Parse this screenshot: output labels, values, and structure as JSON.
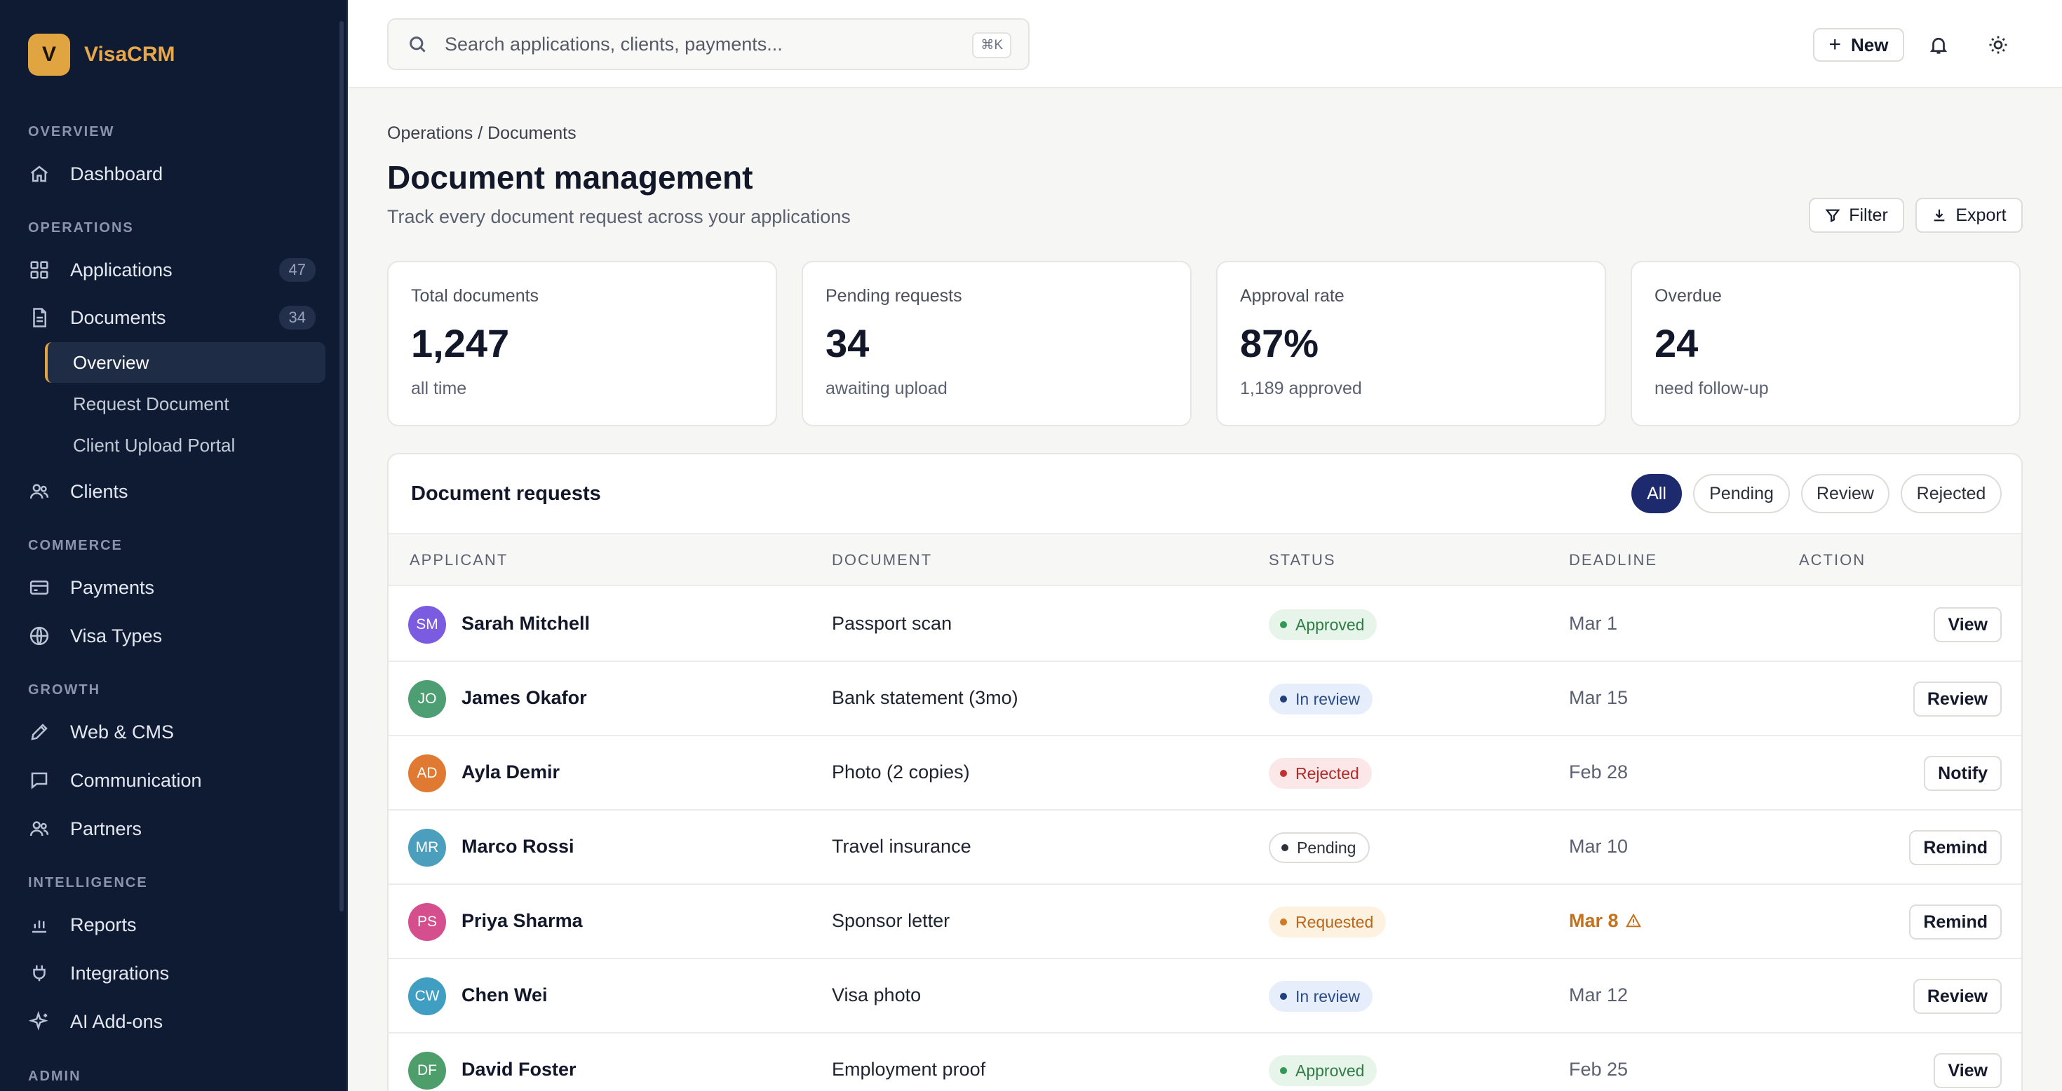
{
  "brand": {
    "logo_letter": "V",
    "name": "VisaCRM"
  },
  "sidebar": {
    "sections": [
      {
        "label": "OVERVIEW"
      },
      {
        "label": "OPERATIONS"
      },
      {
        "label": "COMMERCE"
      },
      {
        "label": "GROWTH"
      },
      {
        "label": "INTELLIGENCE"
      },
      {
        "label": "ADMIN"
      }
    ],
    "items": [
      {
        "label": "Dashboard",
        "icon": "home-icon"
      },
      {
        "label": "Applications",
        "icon": "grid-icon",
        "count": "47"
      },
      {
        "label": "Documents",
        "icon": "document-icon",
        "count": "34"
      },
      {
        "label": "Clients",
        "icon": "users-icon"
      },
      {
        "label": "Payments",
        "icon": "credit-card-icon"
      },
      {
        "label": "Visa Types",
        "icon": "globe-icon"
      },
      {
        "label": "Web & CMS",
        "icon": "pencil-icon"
      },
      {
        "label": "Communication",
        "icon": "chat-icon"
      },
      {
        "label": "Partners",
        "icon": "users-icon"
      },
      {
        "label": "Reports",
        "icon": "bar-chart-icon"
      },
      {
        "label": "Integrations",
        "icon": "plug-icon"
      },
      {
        "label": "AI Add-ons",
        "icon": "sparkle-icon"
      }
    ],
    "subitems": [
      {
        "label": "Overview",
        "active": true
      },
      {
        "label": "Request Document"
      },
      {
        "label": "Client Upload Portal"
      }
    ]
  },
  "topbar": {
    "search_placeholder": "Search applications, clients, payments...",
    "shortcut": "⌘K",
    "new_label": "New"
  },
  "page": {
    "breadcrumb": "Operations / Documents",
    "title": "Document management",
    "subtitle": "Track every document request across your applications",
    "filter_label": "Filter",
    "export_label": "Export"
  },
  "stats": [
    {
      "label": "Total documents",
      "value": "1,247",
      "note": "all time"
    },
    {
      "label": "Pending requests",
      "value": "34",
      "note": "awaiting upload"
    },
    {
      "label": "Approval rate",
      "value": "87%",
      "note": "1,189 approved"
    },
    {
      "label": "Overdue",
      "value": "24",
      "note": "need follow-up"
    }
  ],
  "requests": {
    "title": "Document requests",
    "filters": [
      "All",
      "Pending",
      "Review",
      "Rejected"
    ],
    "active_filter": "All",
    "columns": [
      "APPLICANT",
      "DOCUMENT",
      "STATUS",
      "DEADLINE",
      "ACTION"
    ],
    "rows": [
      {
        "initials": "SM",
        "name": "Sarah Mitchell",
        "document": "Passport scan",
        "status": "Approved",
        "deadline": "Mar 1",
        "action": "View",
        "avatar_color": "#7b5be0"
      },
      {
        "initials": "JO",
        "name": "James Okafor",
        "document": "Bank statement (3mo)",
        "status": "In review",
        "deadline": "Mar 15",
        "action": "Review",
        "avatar_color": "#4d9e72"
      },
      {
        "initials": "AD",
        "name": "Ayla Demir",
        "document": "Photo (2 copies)",
        "status": "Rejected",
        "deadline": "Feb 28",
        "action": "Notify",
        "avatar_color": "#e07a32"
      },
      {
        "initials": "MR",
        "name": "Marco Rossi",
        "document": "Travel insurance",
        "status": "Pending",
        "deadline": "Mar 10",
        "action": "Remind",
        "avatar_color": "#4c9ebd"
      },
      {
        "initials": "PS",
        "name": "Priya Sharma",
        "document": "Sponsor letter",
        "status": "Requested",
        "deadline": "Mar 8",
        "action": "Remind",
        "avatar_color": "#d54e8e",
        "overdue": true
      },
      {
        "initials": "CW",
        "name": "Chen Wei",
        "document": "Visa photo",
        "status": "In review",
        "deadline": "Mar 12",
        "action": "Review",
        "avatar_color": "#3f9ec2"
      },
      {
        "initials": "DF",
        "name": "David Foster",
        "document": "Employment proof",
        "status": "Approved",
        "deadline": "Feb 25",
        "action": "View",
        "avatar_color": "#4d9e6a"
      }
    ]
  },
  "status_colors": {
    "Approved": {
      "bg": "#e6f4ea",
      "fg": "#2f7d45",
      "dot": "#2f9a54"
    },
    "In review": {
      "bg": "#e6eefb",
      "fg": "#2a4a8a",
      "dot": "#23407e"
    },
    "Rejected": {
      "bg": "#fbe7e7",
      "fg": "#b02a2a",
      "dot": "#c52f2f"
    },
    "Pending": {
      "bg": "#ffffff",
      "fg": "#2a2f3a",
      "dot": "#2a2f3a",
      "border": "#dcdcd8"
    },
    "Requested": {
      "bg": "#fdf1e0",
      "fg": "#b8681c",
      "dot": "#d07a25"
    }
  },
  "accent": "#e0a540"
}
